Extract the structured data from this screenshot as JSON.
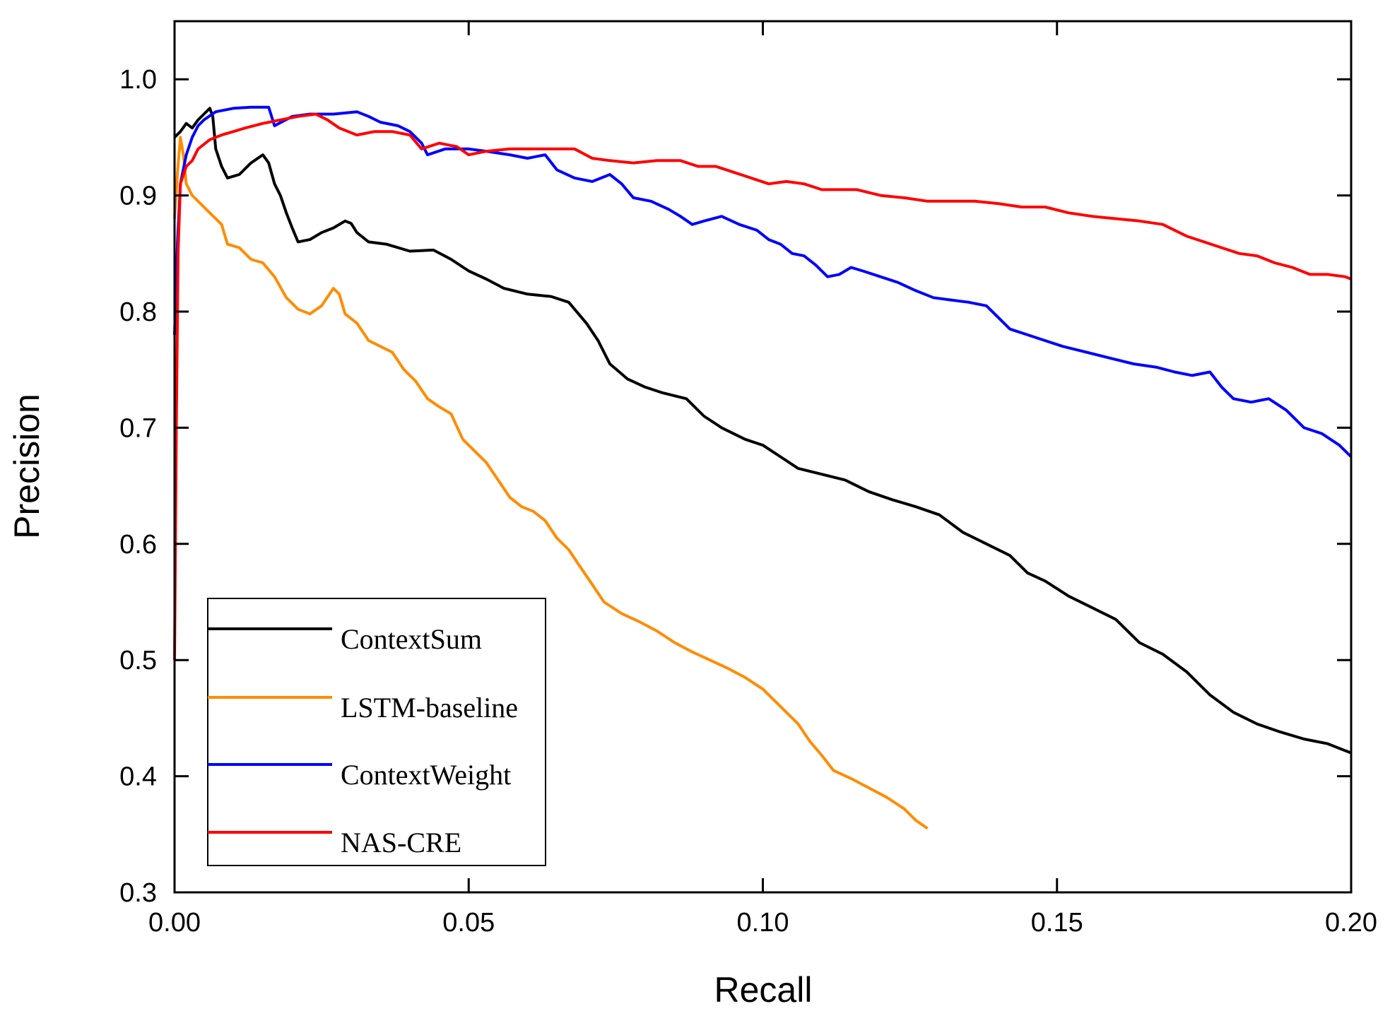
{
  "chart_data": {
    "type": "line",
    "title": "",
    "xlabel": "Recall",
    "ylabel": "Precision",
    "xlim": [
      0.0,
      0.2
    ],
    "ylim": [
      0.3,
      1.05
    ],
    "x_ticks": [
      "0.00",
      "0.05",
      "0.10",
      "0.15",
      "0.20"
    ],
    "y_ticks": [
      "0.3",
      "0.4",
      "0.5",
      "0.6",
      "0.7",
      "0.8",
      "0.9",
      "1.0"
    ],
    "grid": false,
    "legend_position": "bottom-left",
    "series": [
      {
        "name": "ContextSum",
        "color": "#000000",
        "points": [
          [
            0.0,
            0.95
          ],
          [
            0.001,
            0.955
          ],
          [
            0.002,
            0.962
          ],
          [
            0.003,
            0.958
          ],
          [
            0.004,
            0.965
          ],
          [
            0.005,
            0.97
          ],
          [
            0.006,
            0.975
          ],
          [
            0.0065,
            0.968
          ],
          [
            0.007,
            0.94
          ],
          [
            0.008,
            0.925
          ],
          [
            0.009,
            0.915
          ],
          [
            0.011,
            0.918
          ],
          [
            0.013,
            0.928
          ],
          [
            0.015,
            0.935
          ],
          [
            0.016,
            0.928
          ],
          [
            0.017,
            0.91
          ],
          [
            0.018,
            0.9
          ],
          [
            0.019,
            0.885
          ],
          [
            0.02,
            0.872
          ],
          [
            0.021,
            0.86
          ],
          [
            0.023,
            0.862
          ],
          [
            0.025,
            0.868
          ],
          [
            0.027,
            0.872
          ],
          [
            0.029,
            0.878
          ],
          [
            0.03,
            0.876
          ],
          [
            0.031,
            0.868
          ],
          [
            0.033,
            0.86
          ],
          [
            0.036,
            0.858
          ],
          [
            0.04,
            0.852
          ],
          [
            0.044,
            0.853
          ],
          [
            0.047,
            0.845
          ],
          [
            0.05,
            0.835
          ],
          [
            0.053,
            0.828
          ],
          [
            0.056,
            0.82
          ],
          [
            0.06,
            0.815
          ],
          [
            0.064,
            0.813
          ],
          [
            0.067,
            0.808
          ],
          [
            0.07,
            0.79
          ],
          [
            0.072,
            0.775
          ],
          [
            0.074,
            0.755
          ],
          [
            0.077,
            0.742
          ],
          [
            0.08,
            0.735
          ],
          [
            0.083,
            0.73
          ],
          [
            0.087,
            0.725
          ],
          [
            0.09,
            0.71
          ],
          [
            0.093,
            0.7
          ],
          [
            0.097,
            0.69
          ],
          [
            0.1,
            0.685
          ],
          [
            0.103,
            0.675
          ],
          [
            0.106,
            0.665
          ],
          [
            0.11,
            0.66
          ],
          [
            0.114,
            0.655
          ],
          [
            0.118,
            0.645
          ],
          [
            0.122,
            0.638
          ],
          [
            0.126,
            0.632
          ],
          [
            0.13,
            0.625
          ],
          [
            0.134,
            0.61
          ],
          [
            0.138,
            0.6
          ],
          [
            0.142,
            0.59
          ],
          [
            0.145,
            0.575
          ],
          [
            0.148,
            0.568
          ],
          [
            0.152,
            0.555
          ],
          [
            0.156,
            0.545
          ],
          [
            0.16,
            0.535
          ],
          [
            0.164,
            0.515
          ],
          [
            0.168,
            0.505
          ],
          [
            0.172,
            0.49
          ],
          [
            0.176,
            0.47
          ],
          [
            0.18,
            0.455
          ],
          [
            0.184,
            0.445
          ],
          [
            0.188,
            0.438
          ],
          [
            0.192,
            0.432
          ],
          [
            0.196,
            0.428
          ],
          [
            0.2,
            0.42
          ]
        ]
      },
      {
        "name": "LSTM-baseline",
        "color": "#ff8c00",
        "points": [
          [
            0.0,
            0.88
          ],
          [
            0.0005,
            0.92
          ],
          [
            0.001,
            0.95
          ],
          [
            0.0015,
            0.935
          ],
          [
            0.002,
            0.91
          ],
          [
            0.003,
            0.9
          ],
          [
            0.004,
            0.895
          ],
          [
            0.006,
            0.885
          ],
          [
            0.008,
            0.875
          ],
          [
            0.009,
            0.858
          ],
          [
            0.011,
            0.855
          ],
          [
            0.013,
            0.845
          ],
          [
            0.015,
            0.842
          ],
          [
            0.017,
            0.83
          ],
          [
            0.019,
            0.812
          ],
          [
            0.021,
            0.802
          ],
          [
            0.023,
            0.798
          ],
          [
            0.025,
            0.805
          ],
          [
            0.027,
            0.82
          ],
          [
            0.028,
            0.815
          ],
          [
            0.029,
            0.798
          ],
          [
            0.031,
            0.79
          ],
          [
            0.033,
            0.775
          ],
          [
            0.035,
            0.77
          ],
          [
            0.037,
            0.765
          ],
          [
            0.039,
            0.75
          ],
          [
            0.041,
            0.74
          ],
          [
            0.043,
            0.725
          ],
          [
            0.045,
            0.718
          ],
          [
            0.047,
            0.712
          ],
          [
            0.049,
            0.69
          ],
          [
            0.051,
            0.68
          ],
          [
            0.053,
            0.67
          ],
          [
            0.055,
            0.655
          ],
          [
            0.057,
            0.64
          ],
          [
            0.059,
            0.632
          ],
          [
            0.061,
            0.628
          ],
          [
            0.063,
            0.62
          ],
          [
            0.065,
            0.605
          ],
          [
            0.067,
            0.595
          ],
          [
            0.069,
            0.58
          ],
          [
            0.071,
            0.565
          ],
          [
            0.073,
            0.55
          ],
          [
            0.076,
            0.54
          ],
          [
            0.079,
            0.533
          ],
          [
            0.082,
            0.525
          ],
          [
            0.085,
            0.515
          ],
          [
            0.088,
            0.507
          ],
          [
            0.091,
            0.5
          ],
          [
            0.094,
            0.493
          ],
          [
            0.097,
            0.485
          ],
          [
            0.1,
            0.475
          ],
          [
            0.102,
            0.465
          ],
          [
            0.104,
            0.455
          ],
          [
            0.106,
            0.445
          ],
          [
            0.108,
            0.43
          ],
          [
            0.11,
            0.418
          ],
          [
            0.112,
            0.405
          ],
          [
            0.115,
            0.398
          ],
          [
            0.118,
            0.39
          ],
          [
            0.121,
            0.382
          ],
          [
            0.124,
            0.372
          ],
          [
            0.126,
            0.362
          ],
          [
            0.128,
            0.355
          ]
        ]
      },
      {
        "name": "ContextWeight",
        "color": "#0000ff",
        "points": [
          [
            0.0,
            0.78
          ],
          [
            0.0005,
            0.86
          ],
          [
            0.001,
            0.91
          ],
          [
            0.002,
            0.935
          ],
          [
            0.003,
            0.95
          ],
          [
            0.004,
            0.96
          ],
          [
            0.005,
            0.965
          ],
          [
            0.007,
            0.972
          ],
          [
            0.01,
            0.975
          ],
          [
            0.013,
            0.976
          ],
          [
            0.016,
            0.976
          ],
          [
            0.017,
            0.96
          ],
          [
            0.02,
            0.968
          ],
          [
            0.023,
            0.97
          ],
          [
            0.027,
            0.97
          ],
          [
            0.031,
            0.972
          ],
          [
            0.033,
            0.968
          ],
          [
            0.035,
            0.963
          ],
          [
            0.038,
            0.96
          ],
          [
            0.04,
            0.955
          ],
          [
            0.042,
            0.945
          ],
          [
            0.043,
            0.935
          ],
          [
            0.046,
            0.94
          ],
          [
            0.05,
            0.94
          ],
          [
            0.053,
            0.938
          ],
          [
            0.057,
            0.935
          ],
          [
            0.06,
            0.932
          ],
          [
            0.063,
            0.935
          ],
          [
            0.065,
            0.922
          ],
          [
            0.068,
            0.915
          ],
          [
            0.071,
            0.912
          ],
          [
            0.074,
            0.918
          ],
          [
            0.076,
            0.91
          ],
          [
            0.078,
            0.898
          ],
          [
            0.081,
            0.895
          ],
          [
            0.084,
            0.888
          ],
          [
            0.086,
            0.882
          ],
          [
            0.088,
            0.875
          ],
          [
            0.09,
            0.878
          ],
          [
            0.093,
            0.882
          ],
          [
            0.096,
            0.875
          ],
          [
            0.099,
            0.87
          ],
          [
            0.101,
            0.862
          ],
          [
            0.103,
            0.858
          ],
          [
            0.105,
            0.85
          ],
          [
            0.107,
            0.848
          ],
          [
            0.109,
            0.84
          ],
          [
            0.111,
            0.83
          ],
          [
            0.113,
            0.832
          ],
          [
            0.115,
            0.838
          ],
          [
            0.117,
            0.835
          ],
          [
            0.12,
            0.83
          ],
          [
            0.123,
            0.825
          ],
          [
            0.126,
            0.818
          ],
          [
            0.129,
            0.812
          ],
          [
            0.132,
            0.81
          ],
          [
            0.135,
            0.808
          ],
          [
            0.138,
            0.805
          ],
          [
            0.14,
            0.795
          ],
          [
            0.142,
            0.785
          ],
          [
            0.145,
            0.78
          ],
          [
            0.148,
            0.775
          ],
          [
            0.151,
            0.77
          ],
          [
            0.155,
            0.765
          ],
          [
            0.159,
            0.76
          ],
          [
            0.163,
            0.755
          ],
          [
            0.167,
            0.752
          ],
          [
            0.17,
            0.748
          ],
          [
            0.173,
            0.745
          ],
          [
            0.176,
            0.748
          ],
          [
            0.178,
            0.735
          ],
          [
            0.18,
            0.725
          ],
          [
            0.183,
            0.722
          ],
          [
            0.186,
            0.725
          ],
          [
            0.189,
            0.715
          ],
          [
            0.192,
            0.7
          ],
          [
            0.195,
            0.695
          ],
          [
            0.198,
            0.685
          ],
          [
            0.2,
            0.675
          ]
        ]
      },
      {
        "name": "NAS-CRE",
        "color": "#ff0000",
        "points": [
          [
            0.0,
            0.5
          ],
          [
            0.0003,
            0.7
          ],
          [
            0.0006,
            0.85
          ],
          [
            0.001,
            0.91
          ],
          [
            0.002,
            0.925
          ],
          [
            0.003,
            0.93
          ],
          [
            0.004,
            0.94
          ],
          [
            0.006,
            0.948
          ],
          [
            0.008,
            0.952
          ],
          [
            0.01,
            0.955
          ],
          [
            0.012,
            0.958
          ],
          [
            0.015,
            0.962
          ],
          [
            0.018,
            0.965
          ],
          [
            0.021,
            0.968
          ],
          [
            0.024,
            0.97
          ],
          [
            0.026,
            0.965
          ],
          [
            0.028,
            0.958
          ],
          [
            0.031,
            0.952
          ],
          [
            0.034,
            0.955
          ],
          [
            0.037,
            0.955
          ],
          [
            0.04,
            0.952
          ],
          [
            0.042,
            0.94
          ],
          [
            0.045,
            0.945
          ],
          [
            0.048,
            0.942
          ],
          [
            0.05,
            0.935
          ],
          [
            0.053,
            0.938
          ],
          [
            0.057,
            0.94
          ],
          [
            0.06,
            0.94
          ],
          [
            0.064,
            0.94
          ],
          [
            0.068,
            0.94
          ],
          [
            0.071,
            0.932
          ],
          [
            0.074,
            0.93
          ],
          [
            0.078,
            0.928
          ],
          [
            0.082,
            0.93
          ],
          [
            0.086,
            0.93
          ],
          [
            0.089,
            0.925
          ],
          [
            0.092,
            0.925
          ],
          [
            0.095,
            0.92
          ],
          [
            0.098,
            0.915
          ],
          [
            0.101,
            0.91
          ],
          [
            0.104,
            0.912
          ],
          [
            0.107,
            0.91
          ],
          [
            0.11,
            0.905
          ],
          [
            0.113,
            0.905
          ],
          [
            0.116,
            0.905
          ],
          [
            0.12,
            0.9
          ],
          [
            0.124,
            0.898
          ],
          [
            0.128,
            0.895
          ],
          [
            0.132,
            0.895
          ],
          [
            0.136,
            0.895
          ],
          [
            0.14,
            0.893
          ],
          [
            0.144,
            0.89
          ],
          [
            0.148,
            0.89
          ],
          [
            0.152,
            0.885
          ],
          [
            0.156,
            0.882
          ],
          [
            0.16,
            0.88
          ],
          [
            0.164,
            0.878
          ],
          [
            0.168,
            0.875
          ],
          [
            0.172,
            0.865
          ],
          [
            0.175,
            0.86
          ],
          [
            0.178,
            0.855
          ],
          [
            0.181,
            0.85
          ],
          [
            0.184,
            0.848
          ],
          [
            0.187,
            0.842
          ],
          [
            0.19,
            0.838
          ],
          [
            0.193,
            0.832
          ],
          [
            0.196,
            0.832
          ],
          [
            0.199,
            0.83
          ],
          [
            0.2,
            0.828
          ]
        ]
      }
    ]
  }
}
